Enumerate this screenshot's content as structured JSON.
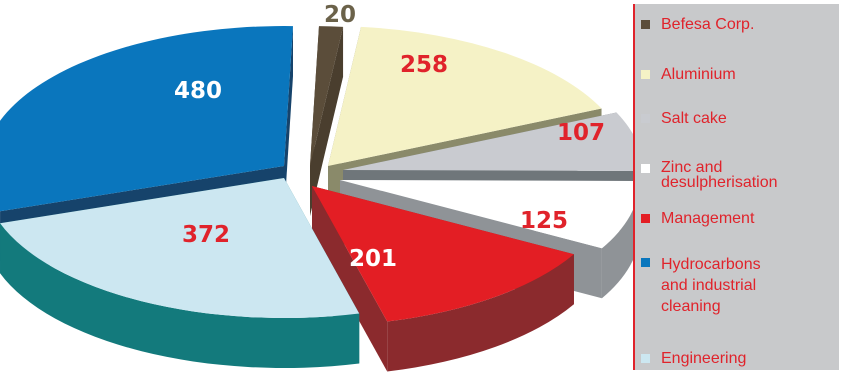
{
  "chart_data": {
    "type": "pie",
    "style": "3d-exploded",
    "title": "",
    "slices": [
      {
        "label": "Befesa Corp.",
        "value": 20,
        "top_color": "#5b4d3a",
        "side_color": "#4a3e2e",
        "label_color": "#6a6a4a"
      },
      {
        "label": "Aluminium",
        "value": 258,
        "top_color": "#f5f2c6",
        "side_color": "#8a8a6a",
        "label_color": "#e0232b"
      },
      {
        "label": "Salt cake",
        "value": 107,
        "top_color": "#c9cbd0",
        "side_color": "#6f767a",
        "label_color": "#e0232b"
      },
      {
        "label": "Zinc and\ndesulpherisation",
        "value": 125,
        "top_color": "#ffffff",
        "side_color": "#8f9397",
        "label_color": "#e0232b"
      },
      {
        "label": "Management",
        "value": 201,
        "top_color": "#e31e24",
        "side_color": "#8b2a2d",
        "label_color": "#ffffff"
      },
      {
        "label": "Engineering",
        "value": 372,
        "top_color": "#cce7f1",
        "side_color": "#137a7c",
        "label_color": "#e0232b"
      },
      {
        "label": "Hydrocarbons\nand industrial\ncleaning",
        "value": 480,
        "top_color": "#0a76bd",
        "side_color": "#16436b",
        "label_color": "#ffffff"
      }
    ],
    "legend_position": "right"
  },
  "legend": {
    "items": [
      {
        "label": "Befesa Corp.",
        "color": "#5b4d3a"
      },
      {
        "label": "Aluminium",
        "color": "#f5f2c6"
      },
      {
        "label": "Salt cake",
        "color": "#c9cbd0"
      },
      {
        "label": "Zinc and\ndesulpherisation",
        "color": "#ffffff"
      },
      {
        "label": "Management",
        "color": "#e31e24"
      },
      {
        "label": "Hydrocarbons\nand industrial\ncleaning",
        "color": "#0a76bd"
      },
      {
        "label": "Engineering",
        "color": "#cce7f1"
      }
    ]
  }
}
